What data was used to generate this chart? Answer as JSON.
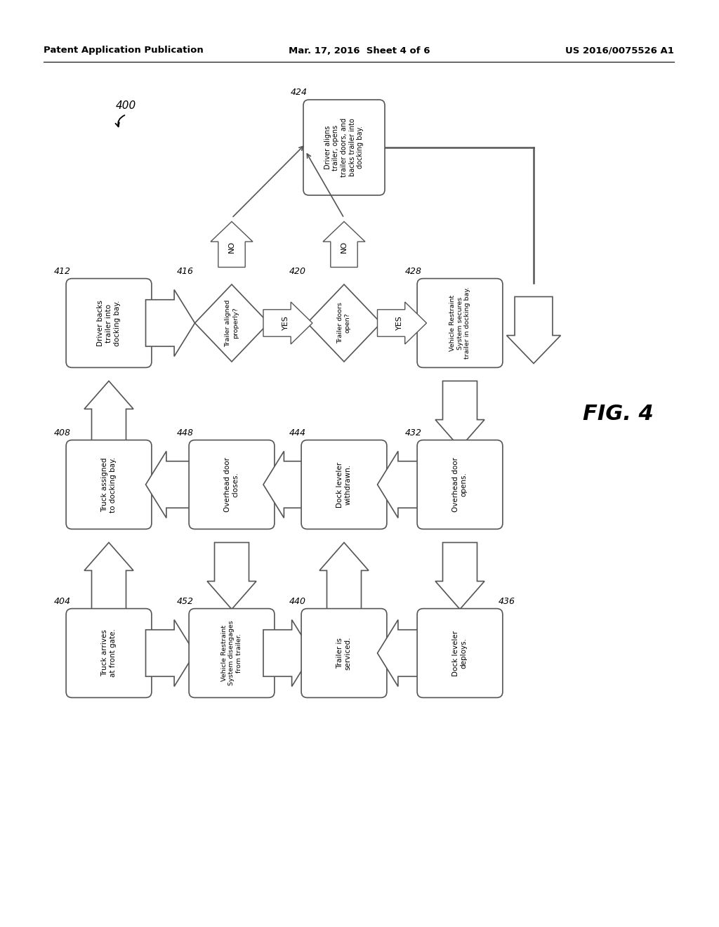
{
  "header_left": "Patent Application Publication",
  "header_mid": "Mar. 17, 2016  Sheet 4 of 6",
  "header_right": "US 2016/0075526 A1",
  "fig_label": "FIG. 4",
  "background": "#ffffff",
  "box_edgecolor": "#555555",
  "text_color": "#000000",
  "nodes": {
    "424": {
      "text": "Driver aligns\ntrailer, opens\ntrailer doors, and\nbacks trailer into\ndocking bay."
    },
    "412": {
      "text": "Driver backs\ntrailer into\ndocking bay."
    },
    "416": {
      "text": "Trailer aligned\nproperly?"
    },
    "420": {
      "text": "Trailer doors\nopen?"
    },
    "428": {
      "text": "Vehicle Restraint\nSystem secures\ntrailer in docking bay."
    },
    "408": {
      "text": "Truck assigned\nto docking bay."
    },
    "448": {
      "text": "Overhead door\ncloses."
    },
    "444": {
      "text": "Dock leveler\nwithdrawn."
    },
    "432": {
      "text": "Overhead door\nopens."
    },
    "404": {
      "text": "Truck arrives\nat front gate."
    },
    "452": {
      "text": "Vehicle Restraint\nSystem disengages\nfrom trailer."
    },
    "440": {
      "text": "Trailer is\nserviced."
    },
    "436": {
      "text": "Dock leveler\ndeploys."
    }
  }
}
